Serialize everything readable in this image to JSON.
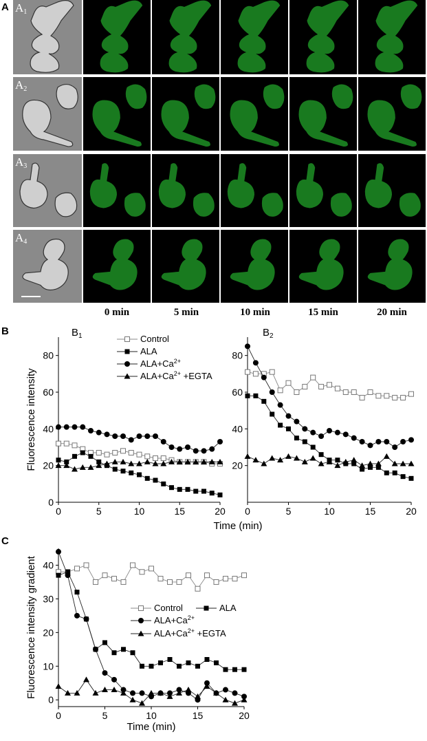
{
  "panel_letters": {
    "a": "A",
    "b": "B",
    "c": "C"
  },
  "microscopy": {
    "row_labels": [
      "A",
      "A",
      "A",
      "A"
    ],
    "row_subs": [
      "1",
      "2",
      "3",
      "4"
    ],
    "time_labels": [
      "0 min",
      "5 min",
      "10 min",
      "15 min",
      "20 min"
    ],
    "fluorescence_color": "#22a32a",
    "background_color": "#000000"
  },
  "chart_data": [
    {
      "id": "B1",
      "type": "line",
      "panel_label": "B",
      "panel_sub": "1",
      "ylabel": "Fluorescence intensity",
      "xlabel": "",
      "xlim": [
        0,
        20
      ],
      "ylim": [
        0,
        90
      ],
      "xticks": [
        0,
        5,
        10,
        15,
        20
      ],
      "yticks": [
        0,
        20,
        40,
        60,
        80
      ],
      "legend_position": "top-right",
      "series": [
        {
          "name": "Control",
          "marker": "open-square",
          "x": [
            0,
            1,
            2,
            3,
            4,
            5,
            6,
            7,
            8,
            9,
            10,
            11,
            12,
            13,
            14,
            15,
            16,
            17,
            18,
            19,
            20
          ],
          "values": [
            32,
            32,
            31,
            29,
            27,
            27,
            26,
            27,
            28,
            27,
            26,
            25,
            24,
            24,
            23,
            22,
            22,
            22,
            22,
            21,
            21
          ]
        },
        {
          "name": "ALA",
          "marker": "filled-square",
          "x": [
            0,
            1,
            2,
            3,
            4,
            5,
            6,
            7,
            8,
            9,
            10,
            11,
            12,
            13,
            14,
            15,
            16,
            17,
            18,
            19,
            20
          ],
          "values": [
            23,
            22,
            25,
            27,
            25,
            22,
            20,
            18,
            17,
            16,
            15,
            13,
            12,
            10,
            8,
            7,
            7,
            6,
            6,
            5,
            4
          ]
        },
        {
          "name": "ALA+Ca",
          "name_sup": "2+",
          "marker": "filled-circle",
          "x": [
            0,
            1,
            2,
            3,
            4,
            5,
            6,
            7,
            8,
            9,
            10,
            11,
            12,
            13,
            14,
            15,
            16,
            17,
            18,
            19,
            20
          ],
          "values": [
            41,
            41,
            41,
            41,
            39,
            38,
            37,
            36,
            36,
            34,
            36,
            36,
            36,
            33,
            30,
            29,
            30,
            28,
            28,
            29,
            33
          ]
        },
        {
          "name": "ALA+Ca",
          "name_sup": "2+",
          "name_suffix": " +EGTA",
          "marker": "filled-triangle",
          "x": [
            0,
            1,
            2,
            3,
            4,
            5,
            6,
            7,
            8,
            9,
            10,
            11,
            12,
            13,
            14,
            15,
            16,
            17,
            18,
            19,
            20
          ],
          "values": [
            20,
            20,
            18,
            19,
            19,
            20,
            21,
            22,
            22,
            21,
            21,
            22,
            21,
            21,
            22,
            22,
            22,
            22,
            22,
            22,
            22
          ]
        }
      ]
    },
    {
      "id": "B2",
      "type": "line",
      "panel_label": "B",
      "panel_sub": "2",
      "ylabel": "",
      "xlabel": "",
      "xlim": [
        0,
        20
      ],
      "ylim": [
        0,
        90
      ],
      "xticks": [
        0,
        5,
        10,
        15,
        20
      ],
      "yticks": [
        20,
        40,
        60,
        80
      ],
      "series": [
        {
          "name": "Control",
          "marker": "open-square",
          "x": [
            0,
            1,
            2,
            3,
            4,
            5,
            6,
            7,
            8,
            9,
            10,
            11,
            12,
            13,
            14,
            15,
            16,
            17,
            18,
            19,
            20
          ],
          "values": [
            71,
            70,
            70,
            71,
            61,
            65,
            60,
            63,
            68,
            63,
            64,
            62,
            60,
            60,
            57,
            60,
            58,
            58,
            57,
            57,
            59
          ]
        },
        {
          "name": "ALA",
          "marker": "filled-square",
          "x": [
            0,
            1,
            2,
            3,
            4,
            5,
            6,
            7,
            8,
            9,
            10,
            11,
            12,
            13,
            14,
            15,
            16,
            17,
            18,
            19,
            20
          ],
          "values": [
            58,
            58,
            55,
            48,
            42,
            40,
            35,
            33,
            30,
            26,
            23,
            23,
            21,
            21,
            18,
            19,
            19,
            16,
            16,
            14,
            13
          ]
        },
        {
          "name": "ALA+Ca2+",
          "marker": "filled-circle",
          "x": [
            0,
            1,
            2,
            3,
            4,
            5,
            6,
            7,
            8,
            9,
            10,
            11,
            12,
            13,
            14,
            15,
            16,
            17,
            18,
            19,
            20
          ],
          "values": [
            85,
            76,
            68,
            60,
            53,
            47,
            44,
            40,
            38,
            36,
            39,
            38,
            37,
            35,
            33,
            31,
            33,
            33,
            30,
            33,
            34
          ]
        },
        {
          "name": "ALA+Ca2+ +EGTA",
          "marker": "filled-triangle",
          "x": [
            0,
            1,
            2,
            3,
            4,
            5,
            6,
            7,
            8,
            9,
            10,
            11,
            12,
            13,
            14,
            15,
            16,
            17,
            18,
            19,
            20
          ],
          "values": [
            25,
            23,
            21,
            24,
            23,
            25,
            24,
            22,
            24,
            21,
            22,
            20,
            22,
            23,
            20,
            21,
            21,
            25,
            21,
            21,
            21
          ]
        }
      ]
    },
    {
      "id": "C",
      "type": "line",
      "panel_label": "C",
      "panel_sub": "",
      "ylabel": "Fluorescence intensity gradient",
      "xlabel": "Time (min)",
      "xlim": [
        0,
        20
      ],
      "ylim": [
        -2,
        45
      ],
      "xticks": [
        0,
        5,
        10,
        15,
        20
      ],
      "yticks": [
        0,
        10,
        20,
        30,
        40
      ],
      "legend_position": "center-right",
      "series": [
        {
          "name": "Control",
          "marker": "open-square",
          "x": [
            0,
            1,
            2,
            3,
            4,
            5,
            6,
            7,
            8,
            9,
            10,
            11,
            12,
            13,
            14,
            15,
            16,
            17,
            18,
            19,
            20
          ],
          "values": [
            38,
            38,
            39,
            40,
            35,
            37,
            36,
            35,
            40,
            38,
            39,
            36,
            35,
            35,
            37,
            33,
            37,
            35,
            36,
            36,
            37
          ]
        },
        {
          "name": "ALA",
          "marker": "filled-square",
          "x": [
            0,
            1,
            2,
            3,
            4,
            5,
            6,
            7,
            8,
            9,
            10,
            11,
            12,
            13,
            14,
            15,
            16,
            17,
            18,
            19,
            20
          ],
          "values": [
            37,
            38,
            32,
            24,
            15,
            17,
            14,
            15,
            14,
            10,
            10,
            11,
            12,
            10,
            11,
            10,
            12,
            11,
            9,
            9,
            9
          ]
        },
        {
          "name": "ALA+Ca",
          "name_sup": "2+",
          "marker": "filled-circle",
          "x": [
            0,
            1,
            2,
            3,
            4,
            5,
            6,
            7,
            8,
            9,
            10,
            11,
            12,
            13,
            14,
            15,
            16,
            17,
            18,
            19,
            20
          ],
          "values": [
            44,
            37,
            25,
            24,
            15,
            8,
            6,
            3,
            2,
            2,
            1,
            2,
            2,
            3,
            2,
            0,
            5,
            2,
            3,
            2,
            1
          ]
        },
        {
          "name": "ALA+Ca",
          "name_sup": "2+",
          "name_suffix": " +EGTA",
          "marker": "filled-triangle",
          "x": [
            0,
            1,
            2,
            3,
            4,
            5,
            6,
            7,
            8,
            9,
            10,
            11,
            12,
            13,
            14,
            15,
            16,
            17,
            18,
            19,
            20
          ],
          "values": [
            4,
            2,
            2,
            6,
            2,
            3,
            3,
            2,
            0,
            -1,
            2,
            2,
            1,
            2,
            3,
            1,
            4,
            2,
            0,
            -1,
            0
          ]
        }
      ]
    }
  ],
  "shared_xlabel_b": "Time (min)"
}
